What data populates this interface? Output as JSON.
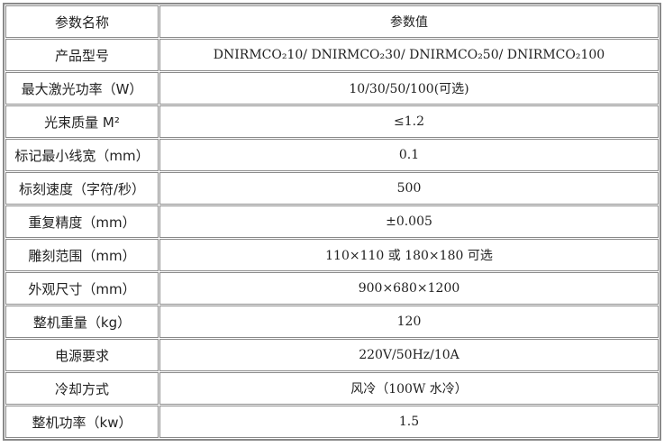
{
  "header": {
    "name": "参数名称",
    "value": "参数值"
  },
  "rows": [
    {
      "name": "产品型号",
      "value": "DNIRMCO₂10/ DNIRMCO₂30/ DNIRMCO₂50/ DNIRMCO₂100"
    },
    {
      "name": "最大激光功率（W）",
      "value": "10/30/50/100(可选)"
    },
    {
      "name": "光束质量 M²",
      "value": "≤1.2"
    },
    {
      "name": "标记最小线宽（mm）",
      "value": "0.1"
    },
    {
      "name": "标刻速度（字符/秒）",
      "value": "500"
    },
    {
      "name": "重复精度（mm）",
      "value": "±0.005"
    },
    {
      "name": "雕刻范围（mm）",
      "value": "110×110 或 180×180 可选"
    },
    {
      "name": "外观尺寸（mm）",
      "value": "900×680×1200"
    },
    {
      "name": "整机重量（kg）",
      "value": "120"
    },
    {
      "name": "电源要求",
      "value": "220V/50Hz/10A"
    },
    {
      "name": "冷却方式",
      "value": "风冷（100W 水冷）"
    },
    {
      "name": "整机功率（kw）",
      "value": "1.5"
    }
  ]
}
